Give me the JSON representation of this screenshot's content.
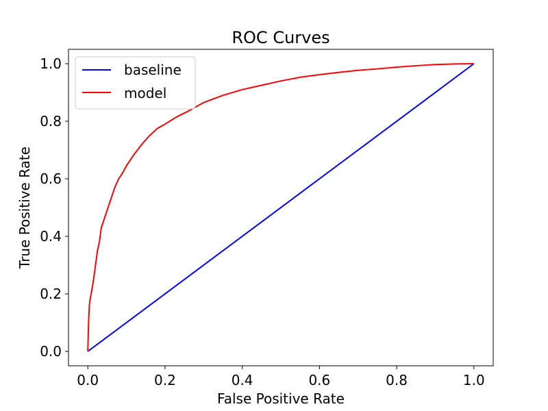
{
  "chart_data": {
    "type": "line",
    "title": "ROC Curves",
    "xlabel": "False Positive Rate",
    "ylabel": "True Positive Rate",
    "xlim": [
      -0.05,
      1.05
    ],
    "ylim": [
      -0.05,
      1.05
    ],
    "xticks": [
      0.0,
      0.2,
      0.4,
      0.6,
      0.8,
      1.0
    ],
    "yticks": [
      0.0,
      0.2,
      0.4,
      0.6,
      0.8,
      1.0
    ],
    "xtick_labels": [
      "0.0",
      "0.2",
      "0.4",
      "0.6",
      "0.8",
      "1.0"
    ],
    "ytick_labels": [
      "0.0",
      "0.2",
      "0.4",
      "0.6",
      "0.8",
      "1.0"
    ],
    "grid": false,
    "legend_position": "top-left",
    "series": [
      {
        "name": "baseline",
        "color": "#0000ff",
        "x": [
          0.0,
          1.0
        ],
        "y": [
          0.0,
          1.0
        ]
      },
      {
        "name": "model",
        "color": "#ff0000",
        "x": [
          0.0,
          0.002,
          0.004,
          0.006,
          0.01,
          0.015,
          0.02,
          0.025,
          0.03,
          0.035,
          0.04,
          0.045,
          0.05,
          0.06,
          0.07,
          0.08,
          0.09,
          0.1,
          0.12,
          0.14,
          0.16,
          0.18,
          0.2,
          0.23,
          0.26,
          0.3,
          0.35,
          0.4,
          0.45,
          0.5,
          0.55,
          0.6,
          0.65,
          0.7,
          0.75,
          0.8,
          0.85,
          0.9,
          0.95,
          1.0
        ],
        "y": [
          0.0,
          0.1,
          0.16,
          0.18,
          0.21,
          0.25,
          0.3,
          0.35,
          0.38,
          0.43,
          0.45,
          0.47,
          0.49,
          0.53,
          0.57,
          0.6,
          0.62,
          0.645,
          0.685,
          0.72,
          0.75,
          0.775,
          0.79,
          0.815,
          0.835,
          0.865,
          0.89,
          0.91,
          0.925,
          0.94,
          0.953,
          0.962,
          0.97,
          0.977,
          0.982,
          0.988,
          0.993,
          0.997,
          0.999,
          1.0
        ]
      }
    ]
  }
}
